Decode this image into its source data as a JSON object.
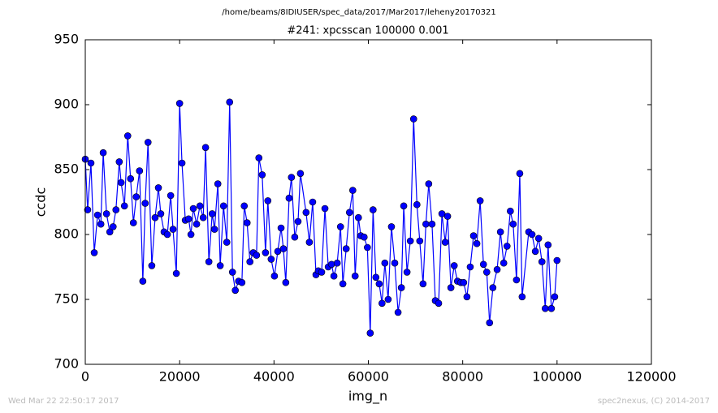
{
  "chart_data": {
    "type": "line",
    "suptitle": "/home/beams/8IDIUSER/spec_data/2017/Mar2017/leheny20170321",
    "title": "#241: xpcsscan 100000 0.001",
    "x_label": "img_n",
    "y_label": "ccdc",
    "timestamp": "Wed Mar 22 22:50:17 2017",
    "credit": "spec2nexus, (C) 2014-2017",
    "color": "#0000ff",
    "x": [
      0,
      500,
      1200,
      1900,
      2600,
      3300,
      3800,
      4500,
      5200,
      5900,
      6500,
      7200,
      7600,
      8300,
      9000,
      9600,
      10200,
      10800,
      11500,
      12200,
      12700,
      13300,
      14100,
      14800,
      15500,
      16000,
      16700,
      17400,
      18100,
      18600,
      19300,
      20000,
      20500,
      21200,
      21900,
      22400,
      22900,
      23600,
      24300,
      25000,
      25500,
      26200,
      26900,
      27400,
      28100,
      28600,
      29300,
      30000,
      30600,
      31200,
      31800,
      32500,
      33200,
      33700,
      34300,
      34900,
      35600,
      36300,
      36800,
      37500,
      38200,
      38700,
      39400,
      40100,
      40800,
      41500,
      42000,
      42500,
      43200,
      43700,
      44400,
      45100,
      45600,
      46800,
      47500,
      48200,
      48900,
      49400,
      50100,
      50800,
      51500,
      52200,
      52700,
      53400,
      54100,
      54600,
      55300,
      56000,
      56700,
      57200,
      57900,
      58400,
      59100,
      59800,
      60400,
      61000,
      61600,
      62300,
      62900,
      63500,
      64200,
      64900,
      65600,
      66300,
      67000,
      67500,
      68200,
      68900,
      69600,
      70300,
      70900,
      71600,
      72200,
      72800,
      73500,
      74200,
      74900,
      75600,
      76300,
      76800,
      77500,
      78200,
      78900,
      79600,
      80200,
      80900,
      81600,
      82300,
      83000,
      83700,
      84400,
      85100,
      85700,
      86400,
      87300,
      88000,
      88700,
      89400,
      90100,
      90700,
      91400,
      92100,
      92600,
      94000,
      94700,
      95400,
      96100,
      96800,
      97500,
      98100,
      98800,
      99500,
      100000
    ],
    "values": [
      858,
      819,
      855,
      786,
      815,
      808,
      863,
      816,
      802,
      806,
      819,
      856,
      840,
      822,
      876,
      843,
      809,
      829,
      849,
      764,
      824,
      871,
      776,
      813,
      836,
      816,
      802,
      800,
      830,
      804,
      770,
      901,
      855,
      811,
      812,
      800,
      820,
      808,
      822,
      813,
      867,
      779,
      816,
      804,
      839,
      776,
      822,
      794,
      902,
      771,
      757,
      764,
      763,
      822,
      809,
      779,
      786,
      784,
      859,
      846,
      786,
      826,
      781,
      768,
      787,
      805,
      789,
      763,
      828,
      844,
      798,
      810,
      847,
      817,
      794,
      825,
      769,
      772,
      771,
      820,
      775,
      777,
      768,
      778,
      806,
      762,
      789,
      817,
      834,
      768,
      813,
      799,
      798,
      790,
      724,
      819,
      767,
      762,
      747,
      778,
      750,
      806,
      778,
      740,
      759,
      822,
      771,
      795,
      889,
      823,
      795,
      762,
      808,
      839,
      808,
      749,
      747,
      816,
      794,
      814,
      759,
      776,
      764,
      763,
      763,
      752,
      775,
      799,
      793,
      826,
      777,
      771,
      732,
      759,
      773,
      802,
      778,
      791,
      818,
      808,
      765,
      847,
      752,
      802,
      800,
      787,
      797,
      779,
      743,
      792,
      743,
      752,
      780
    ],
    "xlim": [
      0,
      120000
    ],
    "xticks": [
      0,
      20000,
      40000,
      60000,
      80000,
      100000,
      120000
    ],
    "ylim": [
      700,
      950
    ],
    "yticks": [
      700,
      750,
      800,
      850,
      900,
      950
    ]
  }
}
